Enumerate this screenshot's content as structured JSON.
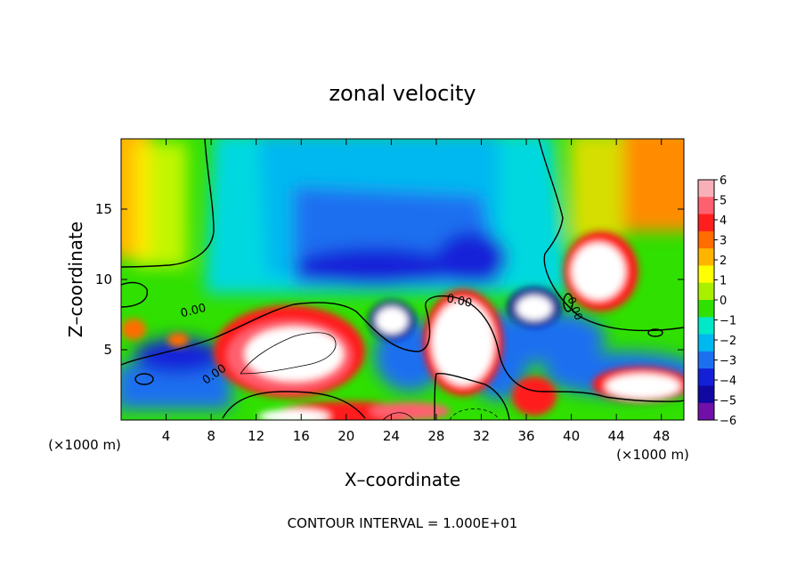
{
  "chart_data": {
    "type": "heatmap",
    "title": "zonal velocity",
    "xlabel": "X–coordinate",
    "ylabel": "Z–coordinate",
    "x_unit_left": "(×1000 m)",
    "x_unit_right": "(×1000 m)",
    "footer": "CONTOUR INTERVAL = 1.000E+01",
    "xlim": [
      0,
      50
    ],
    "ylim": [
      0,
      20
    ],
    "x_ticks": [
      4,
      8,
      12,
      16,
      20,
      24,
      28,
      32,
      36,
      40,
      44,
      48
    ],
    "y_ticks": [
      5,
      10,
      15
    ],
    "contour_labels": [
      "0.00",
      "0.00",
      "0.00",
      "0.00"
    ],
    "colorbar": {
      "ticks": [
        6,
        5,
        4,
        3,
        2,
        1,
        0,
        -1,
        -2,
        -3,
        -4,
        -5,
        -6
      ],
      "tick_labels": [
        "6",
        "5",
        "4",
        "3",
        "2",
        "1",
        "0",
        "−1",
        "−2",
        "−3",
        "−4",
        "−5",
        "−6"
      ],
      "colors": [
        "#f8b0b8",
        "#ff6070",
        "#ff1e1e",
        "#ff6c00",
        "#ffb400",
        "#ffff00",
        "#a8f000",
        "#30e000",
        "#00e8c8",
        "#00b8f0",
        "#1c70f0",
        "#1420d8",
        "#1008a0",
        "#7010a8"
      ]
    }
  }
}
